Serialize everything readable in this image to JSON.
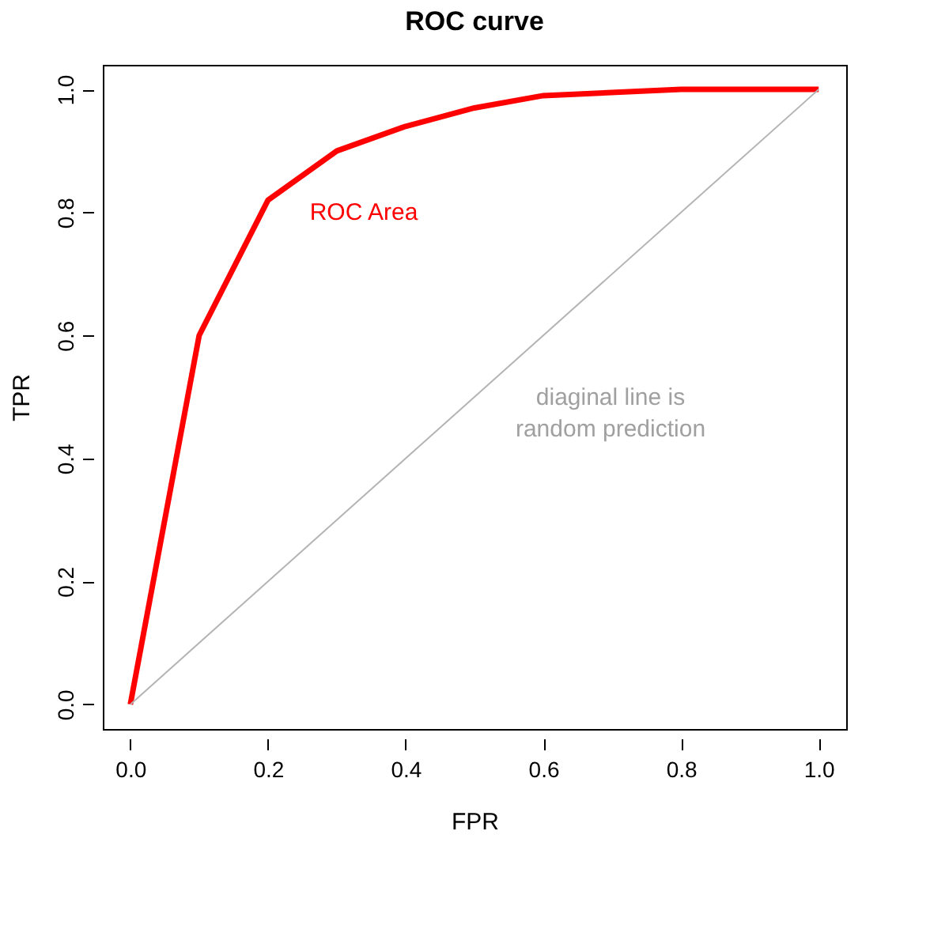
{
  "chart_data": {
    "type": "line",
    "title": "ROC curve",
    "xlabel": "FPR",
    "ylabel": "TPR",
    "x": [
      0,
      0.1,
      0.2,
      0.3,
      0.4,
      0.5,
      0.6,
      0.8,
      1.0
    ],
    "series": [
      {
        "color": "#ff0000",
        "values": [
          0,
          0.6,
          0.82,
          0.9,
          0.94,
          0.97,
          0.99,
          1.0,
          1.0
        ]
      },
      {
        "color": "#b4b4b4",
        "x": [
          0,
          1
        ],
        "values": [
          0,
          1
        ]
      }
    ],
    "annotations": [
      "ROC Area",
      "diaginal line is\nrandom prediction"
    ],
    "xlim": [
      -0.04,
      1.04
    ],
    "ylim": [
      -0.04,
      1.04
    ],
    "xticks": [
      {
        "value": 0,
        "label": "0.0"
      },
      {
        "value": 0.2,
        "label": "0.2"
      },
      {
        "value": 0.4,
        "label": "0.4"
      },
      {
        "value": 0.6,
        "label": "0.6"
      },
      {
        "value": 0.8,
        "label": "0.8"
      },
      {
        "value": 1,
        "label": "1.0"
      }
    ],
    "yticks": [
      {
        "value": 0,
        "label": "0.0"
      },
      {
        "value": 0.2,
        "label": "0.2"
      },
      {
        "value": 0.4,
        "label": "0.4"
      },
      {
        "value": 0.6,
        "label": "0.6"
      },
      {
        "value": 0.8,
        "label": "0.8"
      },
      {
        "value": 1,
        "label": "1.0"
      }
    ],
    "grid": false,
    "marker": "none",
    "line_style": "solid"
  }
}
